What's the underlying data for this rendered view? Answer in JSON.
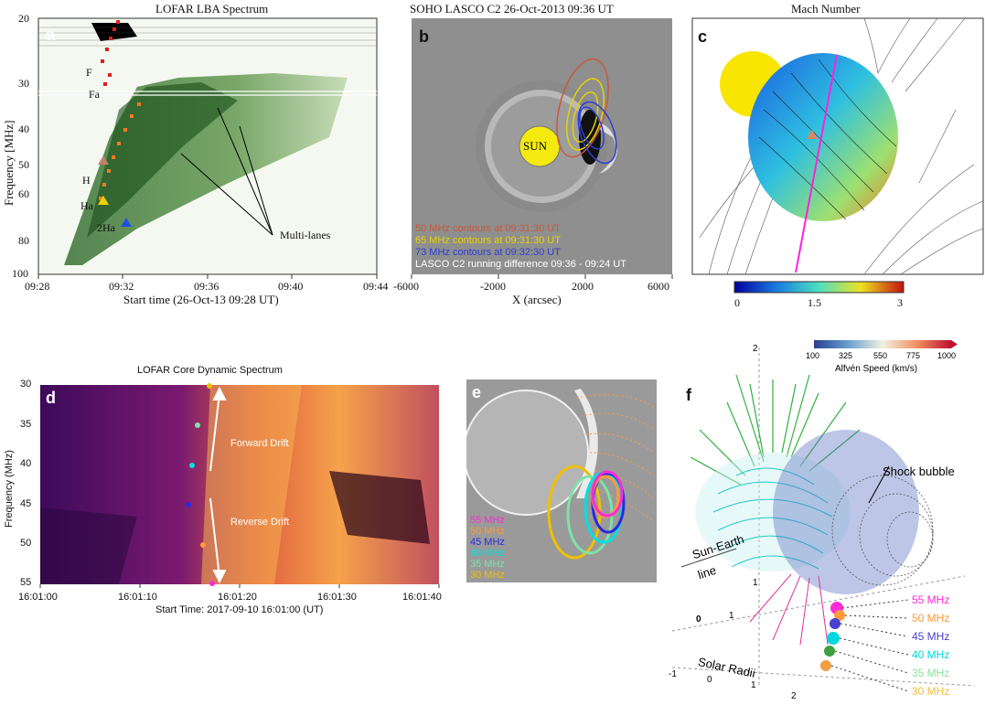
{
  "panel_a": {
    "label": "a",
    "title": "LOFAR LBA Spectrum",
    "xlabel": "Start time (26-Oct-13 09:28 UT)",
    "ylabel": "Frequency [MHz]",
    "xticks": [
      "09:28",
      "09:32",
      "09:36",
      "09:40",
      "09:44"
    ],
    "yticks": [
      "20",
      "30",
      "40",
      "50",
      "60",
      "80",
      "100"
    ],
    "annotations": [
      "F",
      "Fa",
      "H",
      "Ha",
      "2Ha",
      "Multi-lanes"
    ]
  },
  "panel_b": {
    "label": "b",
    "title": "SOHO LASCO C2 26-Oct-2013 09:36 UT",
    "xlabel": "X (arcsec)",
    "xticks": [
      "-6000",
      "-2000",
      "2000",
      "6000"
    ],
    "sun_label": "SUN",
    "legend": [
      {
        "text": "50 MHz contours at 09:31:30 UT",
        "color": "#c8593b"
      },
      {
        "text": "65 MHz contours at 09:31:30 UT",
        "color": "#e8d200"
      },
      {
        "text": "73 MHz contours at 09:32:30 UT",
        "color": "#2c3fd0"
      },
      {
        "text": "LASCO C2 running difference 09:36 - 09:24 UT",
        "color": "#ffffff"
      }
    ]
  },
  "panel_c": {
    "label": "c",
    "title": "Mach Number",
    "cbar_ticks": [
      "0",
      "1.5",
      "3"
    ]
  },
  "panel_d": {
    "label": "d",
    "title": "LOFAR Core Dynamic Spectrum",
    "xlabel": "Start Time: 2017-09-10 16:01:00 (UT)",
    "ylabel": "Frequency (MHz)",
    "xticks": [
      "16:01:00",
      "16:01:10",
      "16:01:20",
      "16:01:30",
      "16:01:40"
    ],
    "yticks": [
      "30",
      "35",
      "40",
      "45",
      "50",
      "55"
    ],
    "forward": "Forward Drift",
    "reverse": "Reverse Drift"
  },
  "panel_e": {
    "label": "e",
    "legend": [
      {
        "text": "55 MHz",
        "color": "#ff2ad4"
      },
      {
        "text": "50 MHz",
        "color": "#ff9a3c"
      },
      {
        "text": "45 MHz",
        "color": "#2a2ae0"
      },
      {
        "text": "40 MHz",
        "color": "#00e0e0"
      },
      {
        "text": "35 MHz",
        "color": "#7de3a8"
      },
      {
        "text": "30 MHz",
        "color": "#f0c000"
      }
    ]
  },
  "panel_f": {
    "label": "f",
    "cbar_title": "Alfvén Speed (km/s)",
    "cbar_ticks": [
      "100",
      "325",
      "550",
      "775",
      "1000"
    ],
    "shock": "Shock bubble",
    "sun_earth_1": "Sun-Earth",
    "sun_earth_2": "line",
    "radii": "Solar Radii",
    "axis_nums": [
      "2",
      "1",
      "0",
      "1",
      "-1",
      "0",
      "1",
      "2"
    ],
    "legend": [
      {
        "text": "55 MHz",
        "color": "#ff2ad4"
      },
      {
        "text": "50 MHz",
        "color": "#ff9a3c"
      },
      {
        "text": "45 MHz",
        "color": "#4a3fd0"
      },
      {
        "text": "40 MHz",
        "color": "#00d8e0"
      },
      {
        "text": "35 MHz",
        "color": "#8fe0a0"
      },
      {
        "text": "30 MHz",
        "color": "#f0c040"
      }
    ]
  }
}
